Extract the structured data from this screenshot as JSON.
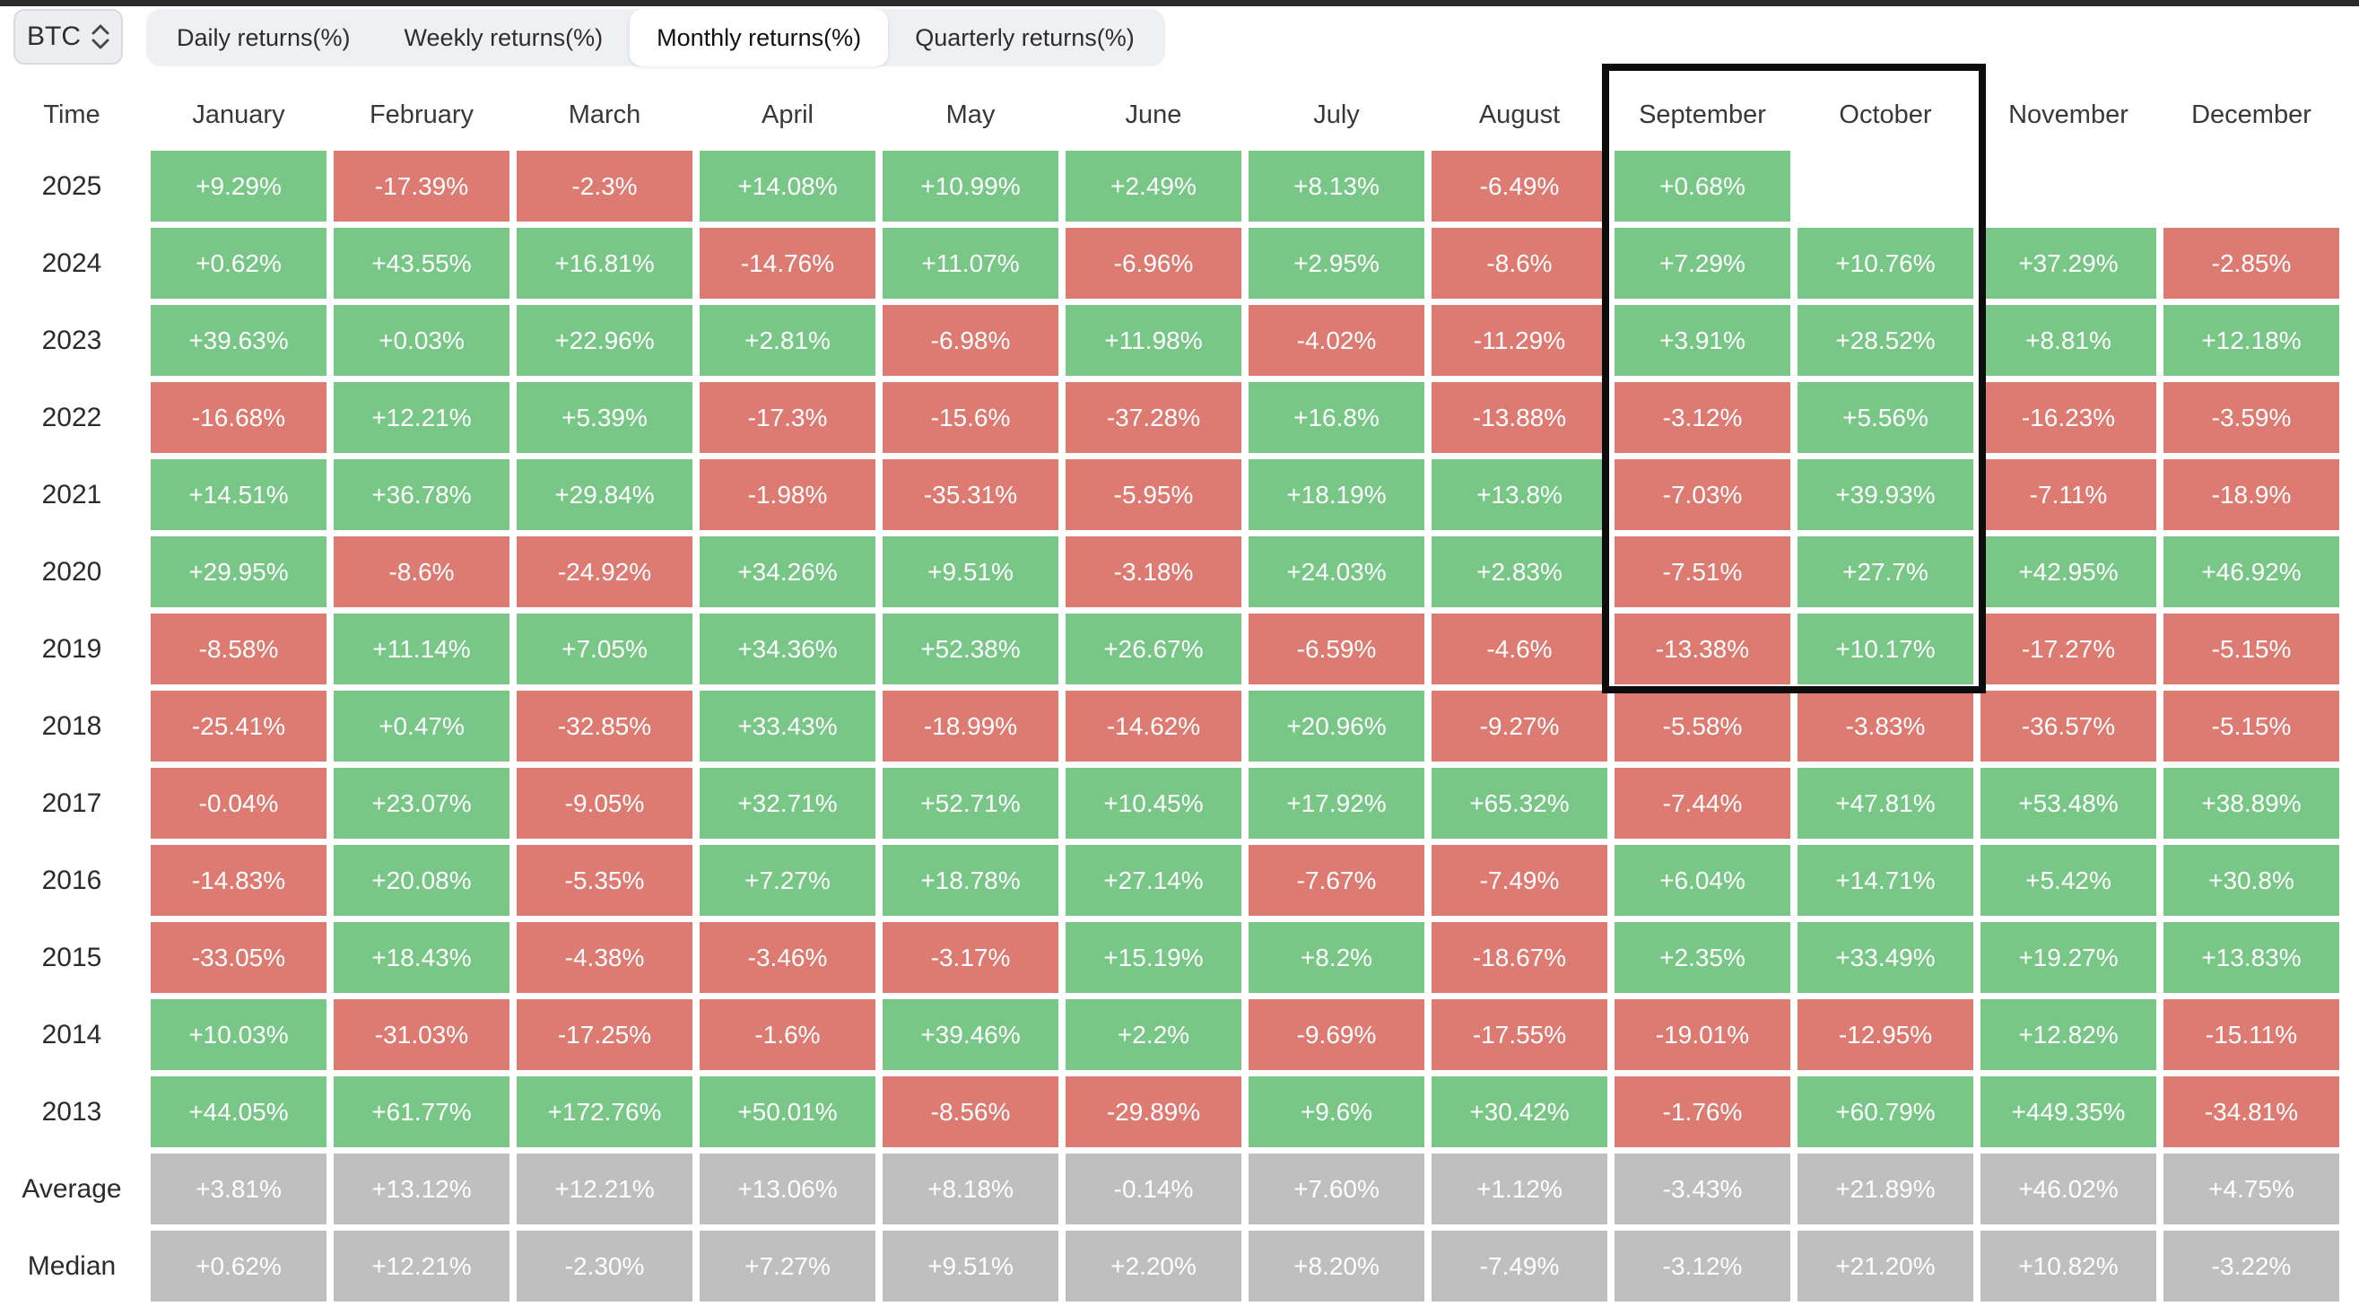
{
  "asset_selector": {
    "label": "BTC"
  },
  "tabs": [
    {
      "label": "Daily returns(%)",
      "active": false
    },
    {
      "label": "Weekly returns(%)",
      "active": false
    },
    {
      "label": "Monthly returns(%)",
      "active": true
    },
    {
      "label": "Quarterly returns(%)",
      "active": false
    }
  ],
  "colors": {
    "green": "#78c787",
    "red": "#dd7a71",
    "grey": "#bfbfbf",
    "topbar": "#2b2b2b",
    "highlight": "#0c0c0c",
    "cell_text": "#ffffff"
  },
  "table": {
    "columns": [
      "Time",
      "January",
      "February",
      "March",
      "April",
      "May",
      "June",
      "July",
      "August",
      "September",
      "October",
      "November",
      "December"
    ],
    "rows": [
      {
        "label": "2025",
        "type": "year",
        "cells": [
          "+9.29%",
          "-17.39%",
          "-2.3%",
          "+14.08%",
          "+10.99%",
          "+2.49%",
          "+8.13%",
          "-6.49%",
          "+0.68%",
          "",
          "",
          ""
        ]
      },
      {
        "label": "2024",
        "type": "year",
        "cells": [
          "+0.62%",
          "+43.55%",
          "+16.81%",
          "-14.76%",
          "+11.07%",
          "-6.96%",
          "+2.95%",
          "-8.6%",
          "+7.29%",
          "+10.76%",
          "+37.29%",
          "-2.85%"
        ]
      },
      {
        "label": "2023",
        "type": "year",
        "cells": [
          "+39.63%",
          "+0.03%",
          "+22.96%",
          "+2.81%",
          "-6.98%",
          "+11.98%",
          "-4.02%",
          "-11.29%",
          "+3.91%",
          "+28.52%",
          "+8.81%",
          "+12.18%"
        ]
      },
      {
        "label": "2022",
        "type": "year",
        "cells": [
          "-16.68%",
          "+12.21%",
          "+5.39%",
          "-17.3%",
          "-15.6%",
          "-37.28%",
          "+16.8%",
          "-13.88%",
          "-3.12%",
          "+5.56%",
          "-16.23%",
          "-3.59%"
        ]
      },
      {
        "label": "2021",
        "type": "year",
        "cells": [
          "+14.51%",
          "+36.78%",
          "+29.84%",
          "-1.98%",
          "-35.31%",
          "-5.95%",
          "+18.19%",
          "+13.8%",
          "-7.03%",
          "+39.93%",
          "-7.11%",
          "-18.9%"
        ]
      },
      {
        "label": "2020",
        "type": "year",
        "cells": [
          "+29.95%",
          "-8.6%",
          "-24.92%",
          "+34.26%",
          "+9.51%",
          "-3.18%",
          "+24.03%",
          "+2.83%",
          "-7.51%",
          "+27.7%",
          "+42.95%",
          "+46.92%"
        ]
      },
      {
        "label": "2019",
        "type": "year",
        "cells": [
          "-8.58%",
          "+11.14%",
          "+7.05%",
          "+34.36%",
          "+52.38%",
          "+26.67%",
          "-6.59%",
          "-4.6%",
          "-13.38%",
          "+10.17%",
          "-17.27%",
          "-5.15%"
        ]
      },
      {
        "label": "2018",
        "type": "year",
        "cells": [
          "-25.41%",
          "+0.47%",
          "-32.85%",
          "+33.43%",
          "-18.99%",
          "-14.62%",
          "+20.96%",
          "-9.27%",
          "-5.58%",
          "-3.83%",
          "-36.57%",
          "-5.15%"
        ]
      },
      {
        "label": "2017",
        "type": "year",
        "cells": [
          "-0.04%",
          "+23.07%",
          "-9.05%",
          "+32.71%",
          "+52.71%",
          "+10.45%",
          "+17.92%",
          "+65.32%",
          "-7.44%",
          "+47.81%",
          "+53.48%",
          "+38.89%"
        ]
      },
      {
        "label": "2016",
        "type": "year",
        "cells": [
          "-14.83%",
          "+20.08%",
          "-5.35%",
          "+7.27%",
          "+18.78%",
          "+27.14%",
          "-7.67%",
          "-7.49%",
          "+6.04%",
          "+14.71%",
          "+5.42%",
          "+30.8%"
        ]
      },
      {
        "label": "2015",
        "type": "year",
        "cells": [
          "-33.05%",
          "+18.43%",
          "-4.38%",
          "-3.46%",
          "-3.17%",
          "+15.19%",
          "+8.2%",
          "-18.67%",
          "+2.35%",
          "+33.49%",
          "+19.27%",
          "+13.83%"
        ]
      },
      {
        "label": "2014",
        "type": "year",
        "cells": [
          "+10.03%",
          "-31.03%",
          "-17.25%",
          "-1.6%",
          "+39.46%",
          "+2.2%",
          "-9.69%",
          "-17.55%",
          "-19.01%",
          "-12.95%",
          "+12.82%",
          "-15.11%"
        ]
      },
      {
        "label": "2013",
        "type": "year",
        "cells": [
          "+44.05%",
          "+61.77%",
          "+172.76%",
          "+50.01%",
          "-8.56%",
          "-29.89%",
          "+9.6%",
          "+30.42%",
          "-1.76%",
          "+60.79%",
          "+449.35%",
          "-34.81%"
        ]
      },
      {
        "label": "Average",
        "type": "stat",
        "cells": [
          "+3.81%",
          "+13.12%",
          "+12.21%",
          "+13.06%",
          "+8.18%",
          "-0.14%",
          "+7.60%",
          "+1.12%",
          "-3.43%",
          "+21.89%",
          "+46.02%",
          "+4.75%"
        ]
      },
      {
        "label": "Median",
        "type": "stat",
        "cells": [
          "+0.62%",
          "+12.21%",
          "-2.30%",
          "+7.27%",
          "+9.51%",
          "+2.20%",
          "+8.20%",
          "-7.49%",
          "-3.12%",
          "+21.20%",
          "+10.82%",
          "-3.22%"
        ]
      }
    ],
    "highlight": {
      "columns": [
        "September",
        "October"
      ],
      "to_row": "2019"
    }
  }
}
